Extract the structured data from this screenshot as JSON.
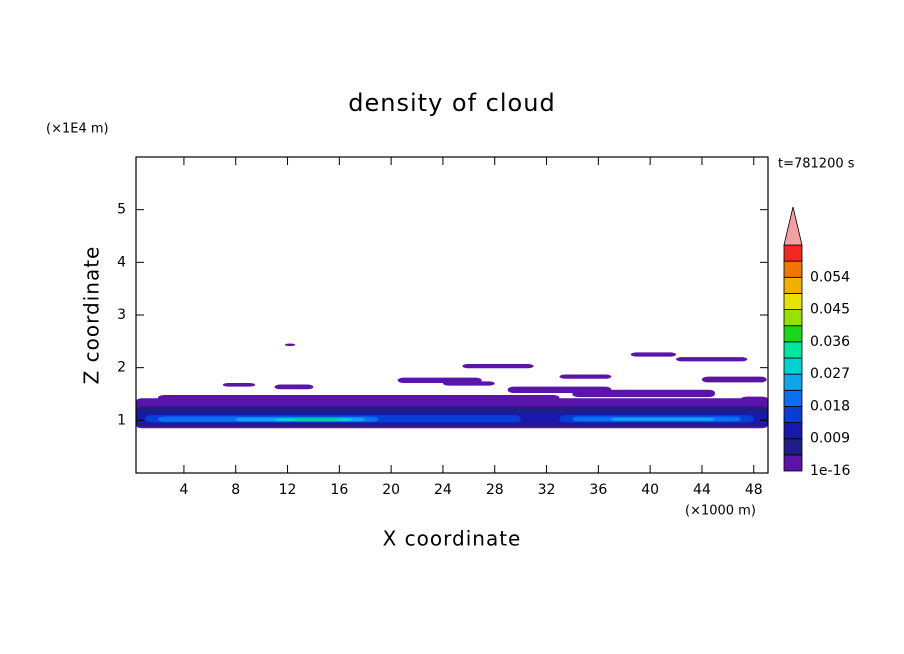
{
  "chart_data": {
    "type": "contour",
    "title": "density of cloud",
    "time_label": "t=781200 s",
    "x_label": "X coordinate",
    "y_label": "Z coordinate",
    "x_unit": "(×1000 m)",
    "y_unit": "(×1E4 m)",
    "xlim": [
      0.3,
      49.1
    ],
    "xticks": [
      4,
      8,
      12,
      16,
      20,
      24,
      28,
      32,
      36,
      40,
      44,
      48
    ],
    "ylim": [
      0,
      6
    ],
    "yticks": [
      1,
      2,
      3,
      4,
      5
    ],
    "colorbar": {
      "levels": [
        1e-16,
        0.0045,
        0.009,
        0.0135,
        0.018,
        0.0225,
        0.027,
        0.0315,
        0.036,
        0.0405,
        0.045,
        0.0495,
        0.054,
        0.0585,
        0.063
      ],
      "colors": [
        "#5a14aa",
        "#1e1e86",
        "#1818ae",
        "#0a3cd8",
        "#0a70f0",
        "#10a4ee",
        "#00d2d2",
        "#00e8a0",
        "#18d818",
        "#98e000",
        "#e4e400",
        "#f0b000",
        "#f07800",
        "#f02820"
      ],
      "extend_color": "#f4a0a0",
      "ticks": [
        1e-16,
        0.009,
        0.018,
        0.027,
        0.036,
        0.045,
        0.054
      ]
    },
    "regions": [
      {
        "level": 1e-16,
        "x": [
          0.3,
          49.1
        ],
        "z": [
          0.85,
          1.42
        ]
      },
      {
        "level": 1e-16,
        "x": [
          2,
          33
        ],
        "z": [
          1.38,
          1.48
        ]
      },
      {
        "level": 1e-16,
        "x": [
          29,
          37
        ],
        "z": [
          1.52,
          1.64
        ]
      },
      {
        "level": 1e-16,
        "x": [
          34,
          45
        ],
        "z": [
          1.44,
          1.58
        ]
      },
      {
        "level": 1e-16,
        "x": [
          47,
          49.1
        ],
        "z": [
          1.35,
          1.45
        ]
      },
      {
        "level": 1e-16,
        "x": [
          7,
          9.5
        ],
        "z": [
          1.64,
          1.71
        ]
      },
      {
        "level": 1e-16,
        "x": [
          11,
          14
        ],
        "z": [
          1.59,
          1.68
        ]
      },
      {
        "level": 1e-16,
        "x": [
          11.8,
          12.6
        ],
        "z": [
          2.41,
          2.46
        ]
      },
      {
        "level": 1e-16,
        "x": [
          20.5,
          27
        ],
        "z": [
          1.71,
          1.81
        ]
      },
      {
        "level": 1e-16,
        "x": [
          24,
          28
        ],
        "z": [
          1.66,
          1.74
        ]
      },
      {
        "level": 1e-16,
        "x": [
          25.5,
          31
        ],
        "z": [
          1.99,
          2.07
        ]
      },
      {
        "level": 1e-16,
        "x": [
          33,
          37
        ],
        "z": [
          1.79,
          1.87
        ]
      },
      {
        "level": 1e-16,
        "x": [
          38.5,
          42
        ],
        "z": [
          2.21,
          2.29
        ]
      },
      {
        "level": 1e-16,
        "x": [
          42,
          47.5
        ],
        "z": [
          2.12,
          2.2
        ]
      },
      {
        "level": 1e-16,
        "x": [
          44,
          49
        ],
        "z": [
          1.72,
          1.83
        ]
      },
      {
        "level": 0.0045,
        "x": [
          0.3,
          49.1
        ],
        "z": [
          0.88,
          1.26
        ]
      },
      {
        "level": 0.009,
        "x": [
          0.3,
          49.1
        ],
        "z": [
          0.93,
          1.14
        ]
      },
      {
        "level": 0.0135,
        "x": [
          1,
          30
        ],
        "z": [
          0.96,
          1.1
        ]
      },
      {
        "level": 0.0135,
        "x": [
          33,
          48
        ],
        "z": [
          0.96,
          1.1
        ]
      },
      {
        "level": 0.018,
        "x": [
          2,
          19
        ],
        "z": [
          0.97,
          1.07
        ]
      },
      {
        "level": 0.018,
        "x": [
          34,
          47
        ],
        "z": [
          0.98,
          1.07
        ]
      },
      {
        "level": 0.0225,
        "x": [
          8,
          18
        ],
        "z": [
          0.98,
          1.05
        ]
      },
      {
        "level": 0.0225,
        "x": [
          37,
          45
        ],
        "z": [
          0.99,
          1.05
        ]
      },
      {
        "level": 0.027,
        "x": [
          11,
          17
        ],
        "z": [
          0.99,
          1.04
        ]
      },
      {
        "level": 0.036,
        "x": [
          12.5,
          16
        ],
        "z": [
          1.0,
          1.03
        ]
      }
    ]
  }
}
